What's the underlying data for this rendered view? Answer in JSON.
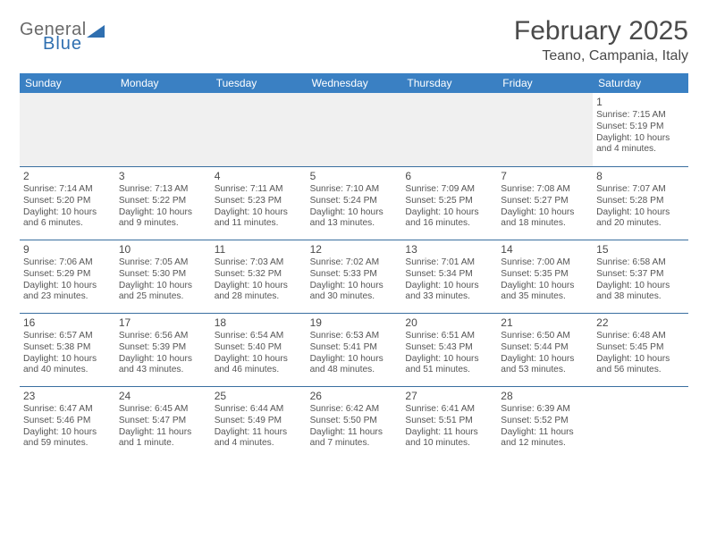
{
  "branding": {
    "logo_word1": "General",
    "logo_word2": "Blue",
    "logo_color": "#2f6fb0"
  },
  "header": {
    "month_title": "February 2025",
    "location": "Teano, Campania, Italy",
    "title_fontsize": 30,
    "location_fontsize": 16
  },
  "styling": {
    "header_row_bg": "#3a80c3",
    "header_row_text": "#ffffff",
    "cell_border_color": "#3a6fa0",
    "body_text_color": "#555555",
    "daynum_color": "#4a4a4a",
    "empty_row_bg": "#f0f0f0",
    "page_bg": "#ffffff",
    "body_fontsize": 10.2,
    "daynum_fontsize": 12,
    "weekday_fontsize": 12
  },
  "weekdays": [
    "Sunday",
    "Monday",
    "Tuesday",
    "Wednesday",
    "Thursday",
    "Friday",
    "Saturday"
  ],
  "weeks": [
    [
      {
        "day": "",
        "lines": []
      },
      {
        "day": "",
        "lines": []
      },
      {
        "day": "",
        "lines": []
      },
      {
        "day": "",
        "lines": []
      },
      {
        "day": "",
        "lines": []
      },
      {
        "day": "",
        "lines": []
      },
      {
        "day": "1",
        "lines": [
          "Sunrise: 7:15 AM",
          "Sunset: 5:19 PM",
          "Daylight: 10 hours and 4 minutes."
        ]
      }
    ],
    [
      {
        "day": "2",
        "lines": [
          "Sunrise: 7:14 AM",
          "Sunset: 5:20 PM",
          "Daylight: 10 hours and 6 minutes."
        ]
      },
      {
        "day": "3",
        "lines": [
          "Sunrise: 7:13 AM",
          "Sunset: 5:22 PM",
          "Daylight: 10 hours and 9 minutes."
        ]
      },
      {
        "day": "4",
        "lines": [
          "Sunrise: 7:11 AM",
          "Sunset: 5:23 PM",
          "Daylight: 10 hours and 11 minutes."
        ]
      },
      {
        "day": "5",
        "lines": [
          "Sunrise: 7:10 AM",
          "Sunset: 5:24 PM",
          "Daylight: 10 hours and 13 minutes."
        ]
      },
      {
        "day": "6",
        "lines": [
          "Sunrise: 7:09 AM",
          "Sunset: 5:25 PM",
          "Daylight: 10 hours and 16 minutes."
        ]
      },
      {
        "day": "7",
        "lines": [
          "Sunrise: 7:08 AM",
          "Sunset: 5:27 PM",
          "Daylight: 10 hours and 18 minutes."
        ]
      },
      {
        "day": "8",
        "lines": [
          "Sunrise: 7:07 AM",
          "Sunset: 5:28 PM",
          "Daylight: 10 hours and 20 minutes."
        ]
      }
    ],
    [
      {
        "day": "9",
        "lines": [
          "Sunrise: 7:06 AM",
          "Sunset: 5:29 PM",
          "Daylight: 10 hours and 23 minutes."
        ]
      },
      {
        "day": "10",
        "lines": [
          "Sunrise: 7:05 AM",
          "Sunset: 5:30 PM",
          "Daylight: 10 hours and 25 minutes."
        ]
      },
      {
        "day": "11",
        "lines": [
          "Sunrise: 7:03 AM",
          "Sunset: 5:32 PM",
          "Daylight: 10 hours and 28 minutes."
        ]
      },
      {
        "day": "12",
        "lines": [
          "Sunrise: 7:02 AM",
          "Sunset: 5:33 PM",
          "Daylight: 10 hours and 30 minutes."
        ]
      },
      {
        "day": "13",
        "lines": [
          "Sunrise: 7:01 AM",
          "Sunset: 5:34 PM",
          "Daylight: 10 hours and 33 minutes."
        ]
      },
      {
        "day": "14",
        "lines": [
          "Sunrise: 7:00 AM",
          "Sunset: 5:35 PM",
          "Daylight: 10 hours and 35 minutes."
        ]
      },
      {
        "day": "15",
        "lines": [
          "Sunrise: 6:58 AM",
          "Sunset: 5:37 PM",
          "Daylight: 10 hours and 38 minutes."
        ]
      }
    ],
    [
      {
        "day": "16",
        "lines": [
          "Sunrise: 6:57 AM",
          "Sunset: 5:38 PM",
          "Daylight: 10 hours and 40 minutes."
        ]
      },
      {
        "day": "17",
        "lines": [
          "Sunrise: 6:56 AM",
          "Sunset: 5:39 PM",
          "Daylight: 10 hours and 43 minutes."
        ]
      },
      {
        "day": "18",
        "lines": [
          "Sunrise: 6:54 AM",
          "Sunset: 5:40 PM",
          "Daylight: 10 hours and 46 minutes."
        ]
      },
      {
        "day": "19",
        "lines": [
          "Sunrise: 6:53 AM",
          "Sunset: 5:41 PM",
          "Daylight: 10 hours and 48 minutes."
        ]
      },
      {
        "day": "20",
        "lines": [
          "Sunrise: 6:51 AM",
          "Sunset: 5:43 PM",
          "Daylight: 10 hours and 51 minutes."
        ]
      },
      {
        "day": "21",
        "lines": [
          "Sunrise: 6:50 AM",
          "Sunset: 5:44 PM",
          "Daylight: 10 hours and 53 minutes."
        ]
      },
      {
        "day": "22",
        "lines": [
          "Sunrise: 6:48 AM",
          "Sunset: 5:45 PM",
          "Daylight: 10 hours and 56 minutes."
        ]
      }
    ],
    [
      {
        "day": "23",
        "lines": [
          "Sunrise: 6:47 AM",
          "Sunset: 5:46 PM",
          "Daylight: 10 hours and 59 minutes."
        ]
      },
      {
        "day": "24",
        "lines": [
          "Sunrise: 6:45 AM",
          "Sunset: 5:47 PM",
          "Daylight: 11 hours and 1 minute."
        ]
      },
      {
        "day": "25",
        "lines": [
          "Sunrise: 6:44 AM",
          "Sunset: 5:49 PM",
          "Daylight: 11 hours and 4 minutes."
        ]
      },
      {
        "day": "26",
        "lines": [
          "Sunrise: 6:42 AM",
          "Sunset: 5:50 PM",
          "Daylight: 11 hours and 7 minutes."
        ]
      },
      {
        "day": "27",
        "lines": [
          "Sunrise: 6:41 AM",
          "Sunset: 5:51 PM",
          "Daylight: 11 hours and 10 minutes."
        ]
      },
      {
        "day": "28",
        "lines": [
          "Sunrise: 6:39 AM",
          "Sunset: 5:52 PM",
          "Daylight: 11 hours and 12 minutes."
        ]
      },
      {
        "day": "",
        "lines": []
      }
    ]
  ]
}
